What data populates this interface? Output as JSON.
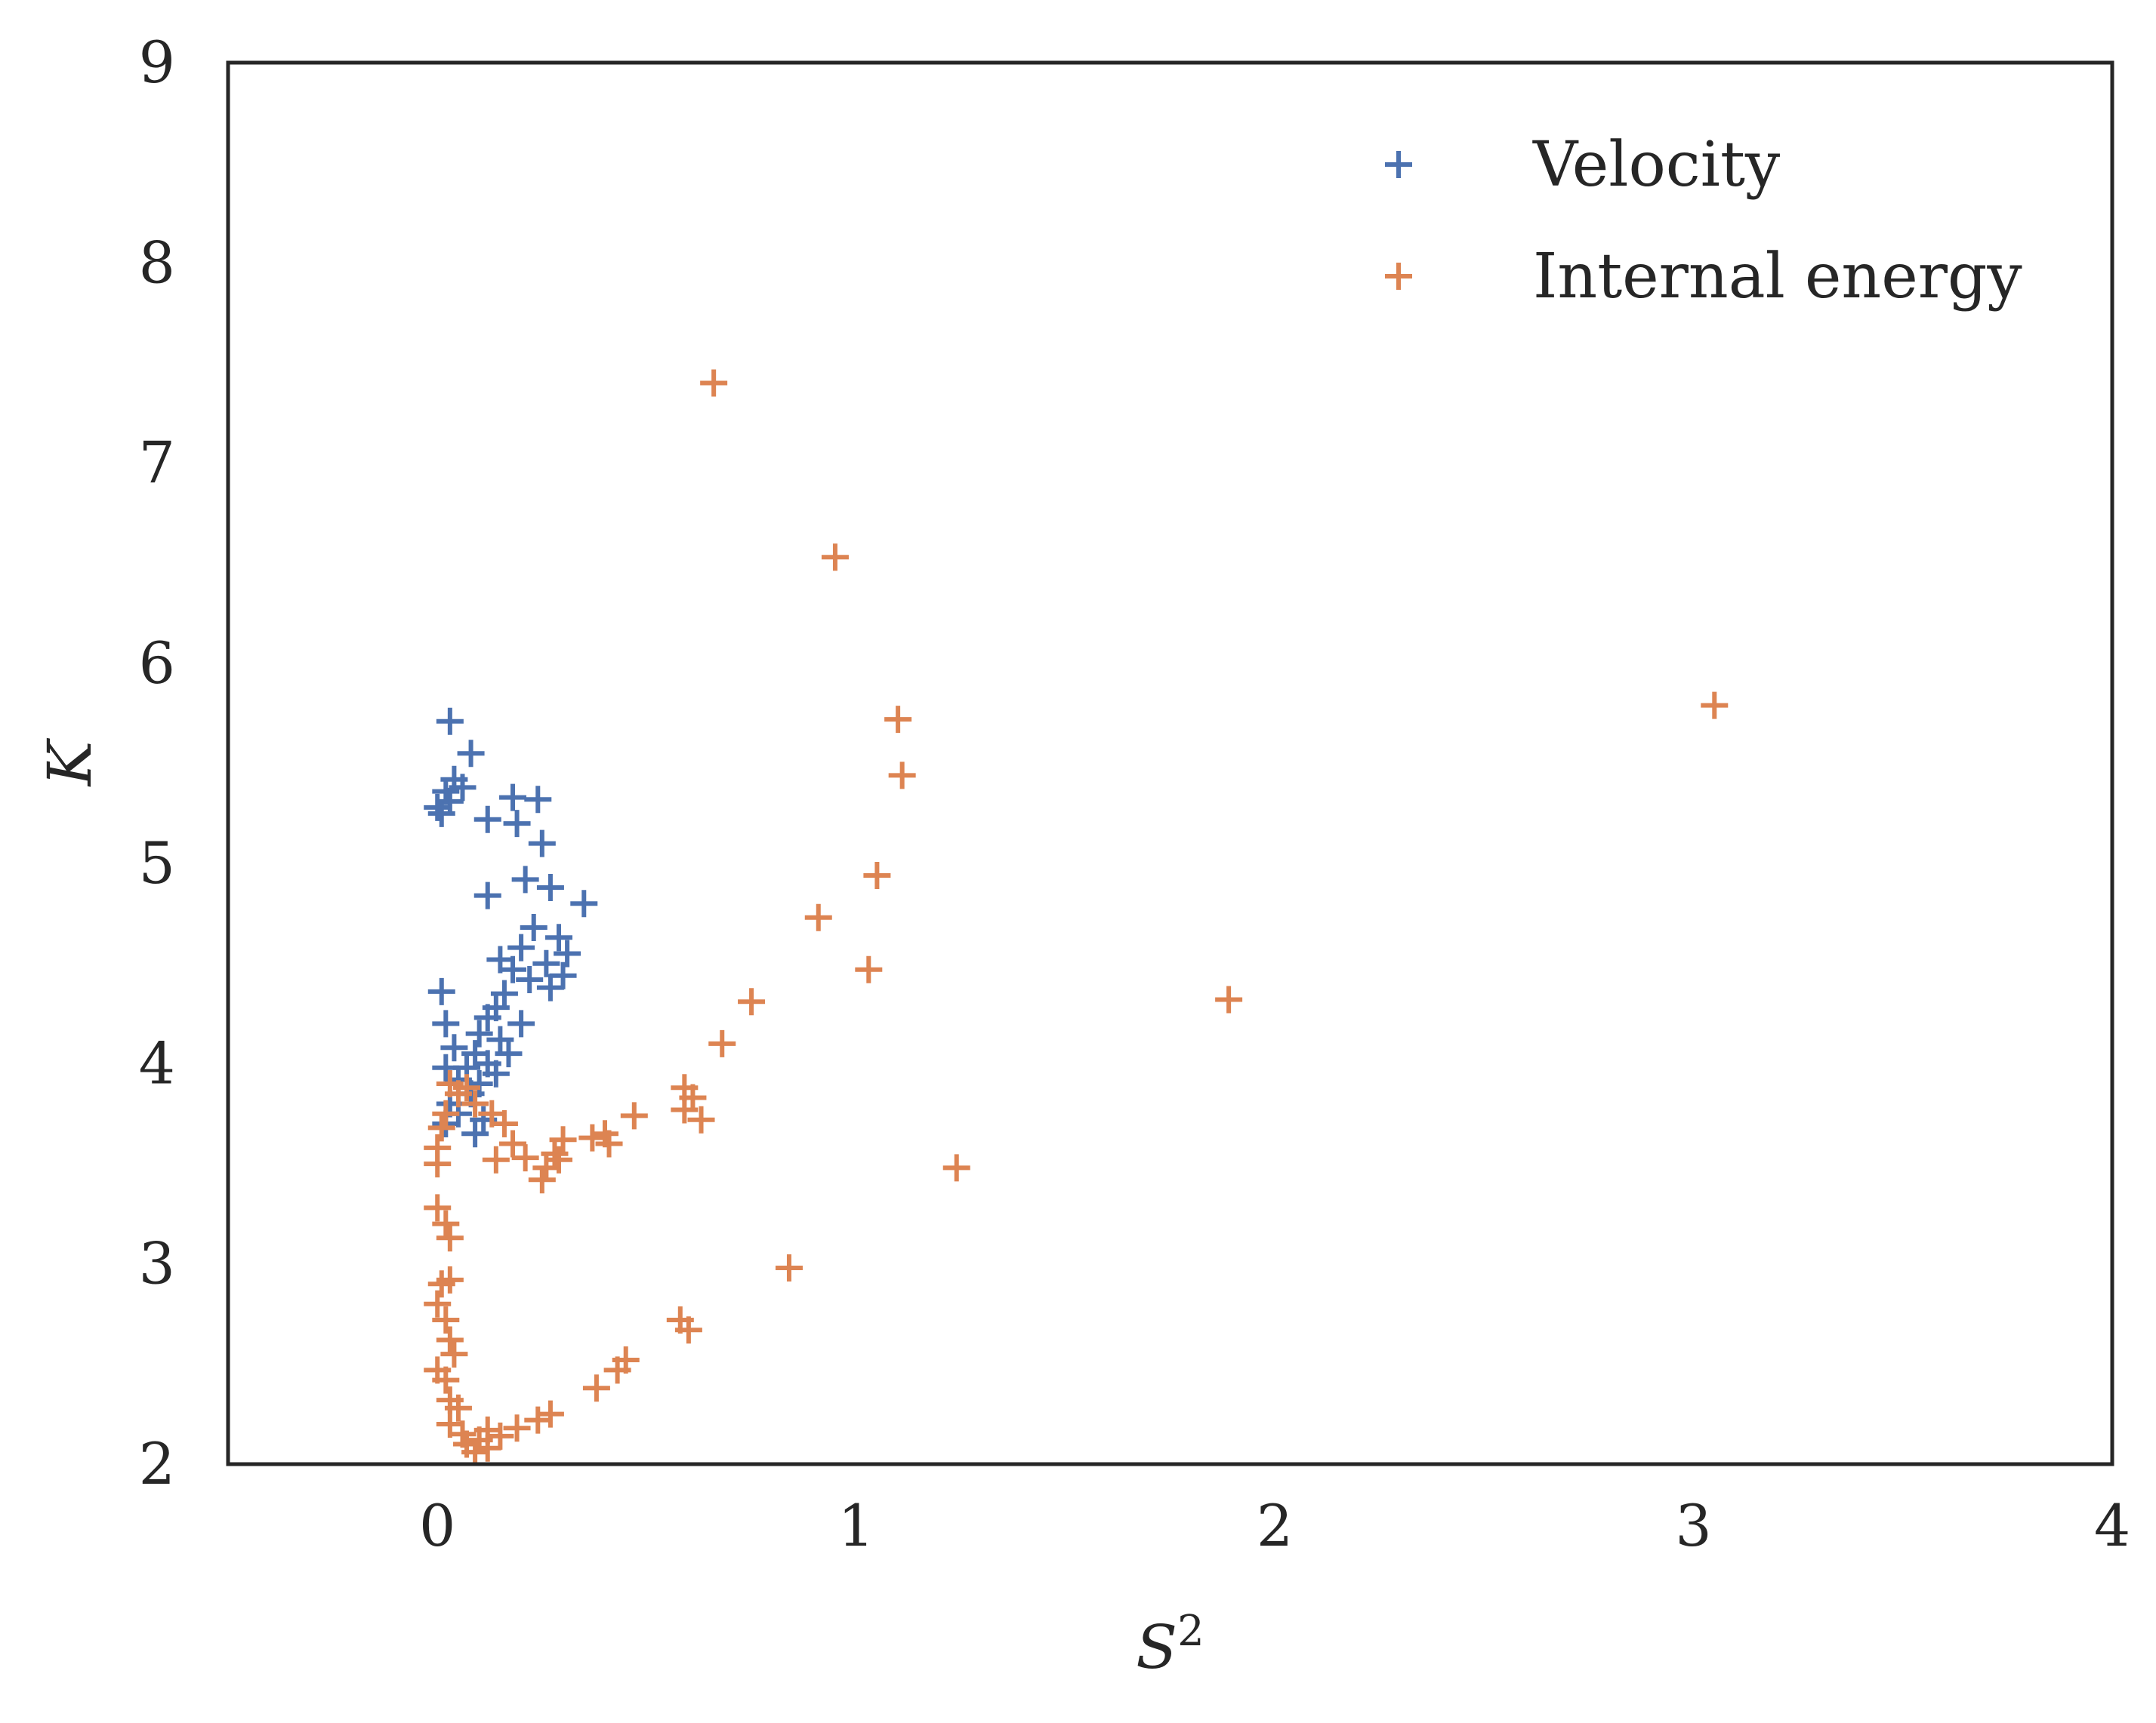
{
  "chart_data": {
    "type": "scatter",
    "title": "",
    "xlabel": "S",
    "xlabel_superscript": "2",
    "ylabel": "K",
    "xlim": [
      -0.5,
      4
    ],
    "ylim": [
      2,
      9
    ],
    "xticks": [
      0,
      1,
      2,
      3,
      4
    ],
    "xtick_labels": [
      "0",
      "1",
      "2",
      "3",
      "4"
    ],
    "yticks": [
      2,
      3,
      4,
      5,
      6,
      7,
      8,
      9
    ],
    "ytick_labels": [
      "2",
      "3",
      "4",
      "5",
      "6",
      "7",
      "8",
      "9"
    ],
    "grid": false,
    "legend_position": "top-right",
    "marker": "plus",
    "series": [
      {
        "name": "Velocity",
        "color": "#4c72b0",
        "points": [
          [
            0.03,
            5.71
          ],
          [
            0.08,
            5.55
          ],
          [
            0.04,
            5.42
          ],
          [
            0.06,
            5.38
          ],
          [
            0.02,
            5.36
          ],
          [
            0.0,
            5.28
          ],
          [
            0.01,
            5.25
          ],
          [
            0.03,
            5.31
          ],
          [
            0.18,
            5.33
          ],
          [
            0.24,
            5.32
          ],
          [
            0.12,
            5.22
          ],
          [
            0.19,
            5.2
          ],
          [
            0.25,
            5.1
          ],
          [
            0.21,
            4.92
          ],
          [
            0.27,
            4.88
          ],
          [
            0.12,
            4.84
          ],
          [
            0.35,
            4.8
          ],
          [
            0.23,
            4.68
          ],
          [
            0.29,
            4.63
          ],
          [
            0.2,
            4.58
          ],
          [
            0.31,
            4.55
          ],
          [
            0.15,
            4.52
          ],
          [
            0.26,
            4.5
          ],
          [
            0.3,
            4.44
          ],
          [
            0.22,
            4.42
          ],
          [
            0.18,
            4.47
          ],
          [
            0.27,
            4.38
          ],
          [
            0.16,
            4.35
          ],
          [
            0.01,
            4.36
          ],
          [
            0.14,
            4.28
          ],
          [
            0.12,
            4.23
          ],
          [
            0.2,
            4.2
          ],
          [
            0.02,
            4.2
          ],
          [
            0.1,
            4.15
          ],
          [
            0.15,
            4.12
          ],
          [
            0.04,
            4.08
          ],
          [
            0.09,
            4.05
          ],
          [
            0.17,
            4.05
          ],
          [
            0.12,
            4.0
          ],
          [
            0.07,
            3.98
          ],
          [
            0.14,
            3.95
          ],
          [
            0.02,
            3.98
          ],
          [
            0.05,
            3.92
          ],
          [
            0.1,
            3.9
          ],
          [
            0.08,
            3.85
          ],
          [
            0.03,
            3.8
          ],
          [
            0.05,
            3.75
          ],
          [
            0.11,
            3.72
          ],
          [
            0.02,
            3.7
          ],
          [
            0.09,
            3.65
          ]
        ]
      },
      {
        "name": "Internal energy",
        "color": "#dd8452",
        "points": [
          [
            0.66,
            7.4
          ],
          [
            0.95,
            6.53
          ],
          [
            3.05,
            5.79
          ],
          [
            1.1,
            5.72
          ],
          [
            1.11,
            5.44
          ],
          [
            1.05,
            4.94
          ],
          [
            0.91,
            4.73
          ],
          [
            1.03,
            4.47
          ],
          [
            1.89,
            4.32
          ],
          [
            0.75,
            4.31
          ],
          [
            0.68,
            4.1
          ],
          [
            0.59,
            3.88
          ],
          [
            0.61,
            3.83
          ],
          [
            0.63,
            3.72
          ],
          [
            0.59,
            3.77
          ],
          [
            0.47,
            3.74
          ],
          [
            0.4,
            3.65
          ],
          [
            0.37,
            3.63
          ],
          [
            0.41,
            3.6
          ],
          [
            0.3,
            3.62
          ],
          [
            0.28,
            3.55
          ],
          [
            0.21,
            3.53
          ],
          [
            0.26,
            3.48
          ],
          [
            0.29,
            3.52
          ],
          [
            0.25,
            3.42
          ],
          [
            0.14,
            3.52
          ],
          [
            0.18,
            3.6
          ],
          [
            0.16,
            3.7
          ],
          [
            0.13,
            3.75
          ],
          [
            0.09,
            3.8
          ],
          [
            0.05,
            3.85
          ],
          [
            0.03,
            3.9
          ],
          [
            0.07,
            3.88
          ],
          [
            0.02,
            3.75
          ],
          [
            0.01,
            3.68
          ],
          [
            0.0,
            3.58
          ],
          [
            0.0,
            3.5
          ],
          [
            1.24,
            3.48
          ],
          [
            0.0,
            3.28
          ],
          [
            0.02,
            3.2
          ],
          [
            0.03,
            3.13
          ],
          [
            0.84,
            2.98
          ],
          [
            0.01,
            2.9
          ],
          [
            0.03,
            2.92
          ],
          [
            0.0,
            2.8
          ],
          [
            0.02,
            2.72
          ],
          [
            0.58,
            2.72
          ],
          [
            0.6,
            2.67
          ],
          [
            0.03,
            2.62
          ],
          [
            0.04,
            2.55
          ],
          [
            0.45,
            2.52
          ],
          [
            0.43,
            2.47
          ],
          [
            0.0,
            2.47
          ],
          [
            0.02,
            2.42
          ],
          [
            0.38,
            2.38
          ],
          [
            0.03,
            2.32
          ],
          [
            0.05,
            2.28
          ],
          [
            0.27,
            2.25
          ],
          [
            0.24,
            2.22
          ],
          [
            0.03,
            2.2
          ],
          [
            0.19,
            2.18
          ],
          [
            0.12,
            2.17
          ],
          [
            0.06,
            2.15
          ],
          [
            0.15,
            2.14
          ],
          [
            0.1,
            2.12
          ],
          [
            0.07,
            2.1
          ],
          [
            0.12,
            2.08
          ],
          [
            0.09,
            2.06
          ]
        ]
      }
    ]
  }
}
